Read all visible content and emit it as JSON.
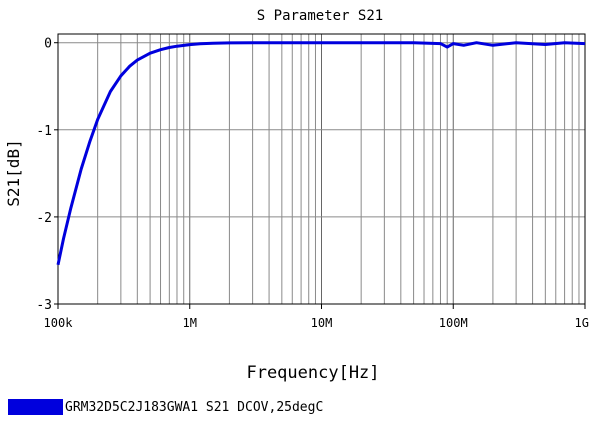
{
  "chart_data": {
    "type": "line",
    "title": "S Parameter S21",
    "xlabel": "Frequency[Hz]",
    "ylabel": "S21[dB]",
    "x_scale": "log",
    "xlim": [
      100000,
      1000000000
    ],
    "ylim": [
      -3,
      0.1
    ],
    "x_ticks": [
      {
        "value": 100000,
        "label": "100k"
      },
      {
        "value": 1000000,
        "label": "1M"
      },
      {
        "value": 10000000,
        "label": "10M"
      },
      {
        "value": 100000000,
        "label": "100M"
      },
      {
        "value": 1000000000,
        "label": "1G"
      }
    ],
    "y_ticks": [
      {
        "value": 0,
        "label": "0"
      },
      {
        "value": -1,
        "label": "-1"
      },
      {
        "value": -2,
        "label": "-2"
      },
      {
        "value": -3,
        "label": "-3"
      }
    ],
    "grid": true,
    "legend_position": "bottom-left",
    "series": [
      {
        "name": "GRM32D5C2J183GWA1 S21 DCOV,25degC",
        "color": "#0000dd",
        "x": [
          100000,
          110000,
          125000,
          150000,
          175000,
          200000,
          250000,
          300000,
          350000,
          400000,
          500000,
          600000,
          700000,
          800000,
          1000000,
          1200000,
          1500000,
          2000000,
          3000000,
          5000000,
          10000000,
          20000000,
          50000000,
          80000000,
          90000000,
          100000000,
          120000000,
          150000000,
          200000000,
          300000000,
          500000000,
          700000000,
          1000000000
        ],
        "y": [
          -2.55,
          -2.25,
          -1.9,
          -1.45,
          -1.13,
          -0.88,
          -0.56,
          -0.38,
          -0.27,
          -0.2,
          -0.12,
          -0.08,
          -0.055,
          -0.04,
          -0.022,
          -0.012,
          -0.006,
          -0.002,
          0.0,
          0.0,
          0.0,
          0.0,
          0.0,
          -0.01,
          -0.05,
          -0.01,
          -0.03,
          0.0,
          -0.03,
          0.0,
          -0.02,
          0.0,
          -0.01
        ]
      }
    ]
  }
}
